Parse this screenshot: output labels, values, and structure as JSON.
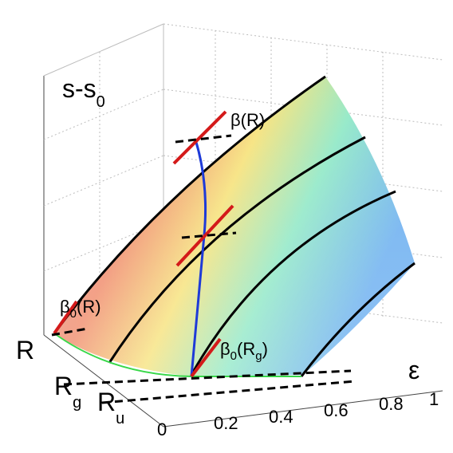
{
  "chart_data": {
    "type": "surface",
    "z_label_main": "s-s",
    "z_label_sub": "0",
    "x_label": "ε",
    "x_ticks": [
      "0",
      "0.2",
      "0.4",
      "0.6",
      "0.8",
      "1"
    ],
    "y_ticks": [
      {
        "main": "R",
        "sub": ""
      },
      {
        "main": "R",
        "sub": "g"
      },
      {
        "main": "R",
        "sub": "u"
      }
    ],
    "annotations": [
      {
        "main": "β",
        "sub": "",
        "arg": "(R)"
      },
      {
        "main": "β",
        "sub": "0",
        "arg": "(R)"
      },
      {
        "main": "β",
        "sub": "0",
        "arg": "(R",
        "arg_sub": "g",
        "arg_end": ")"
      }
    ],
    "colormap": [
      "#e8a0a0",
      "#f5e27a",
      "#8fe3c6",
      "#6aaef0"
    ],
    "grid": true
  }
}
